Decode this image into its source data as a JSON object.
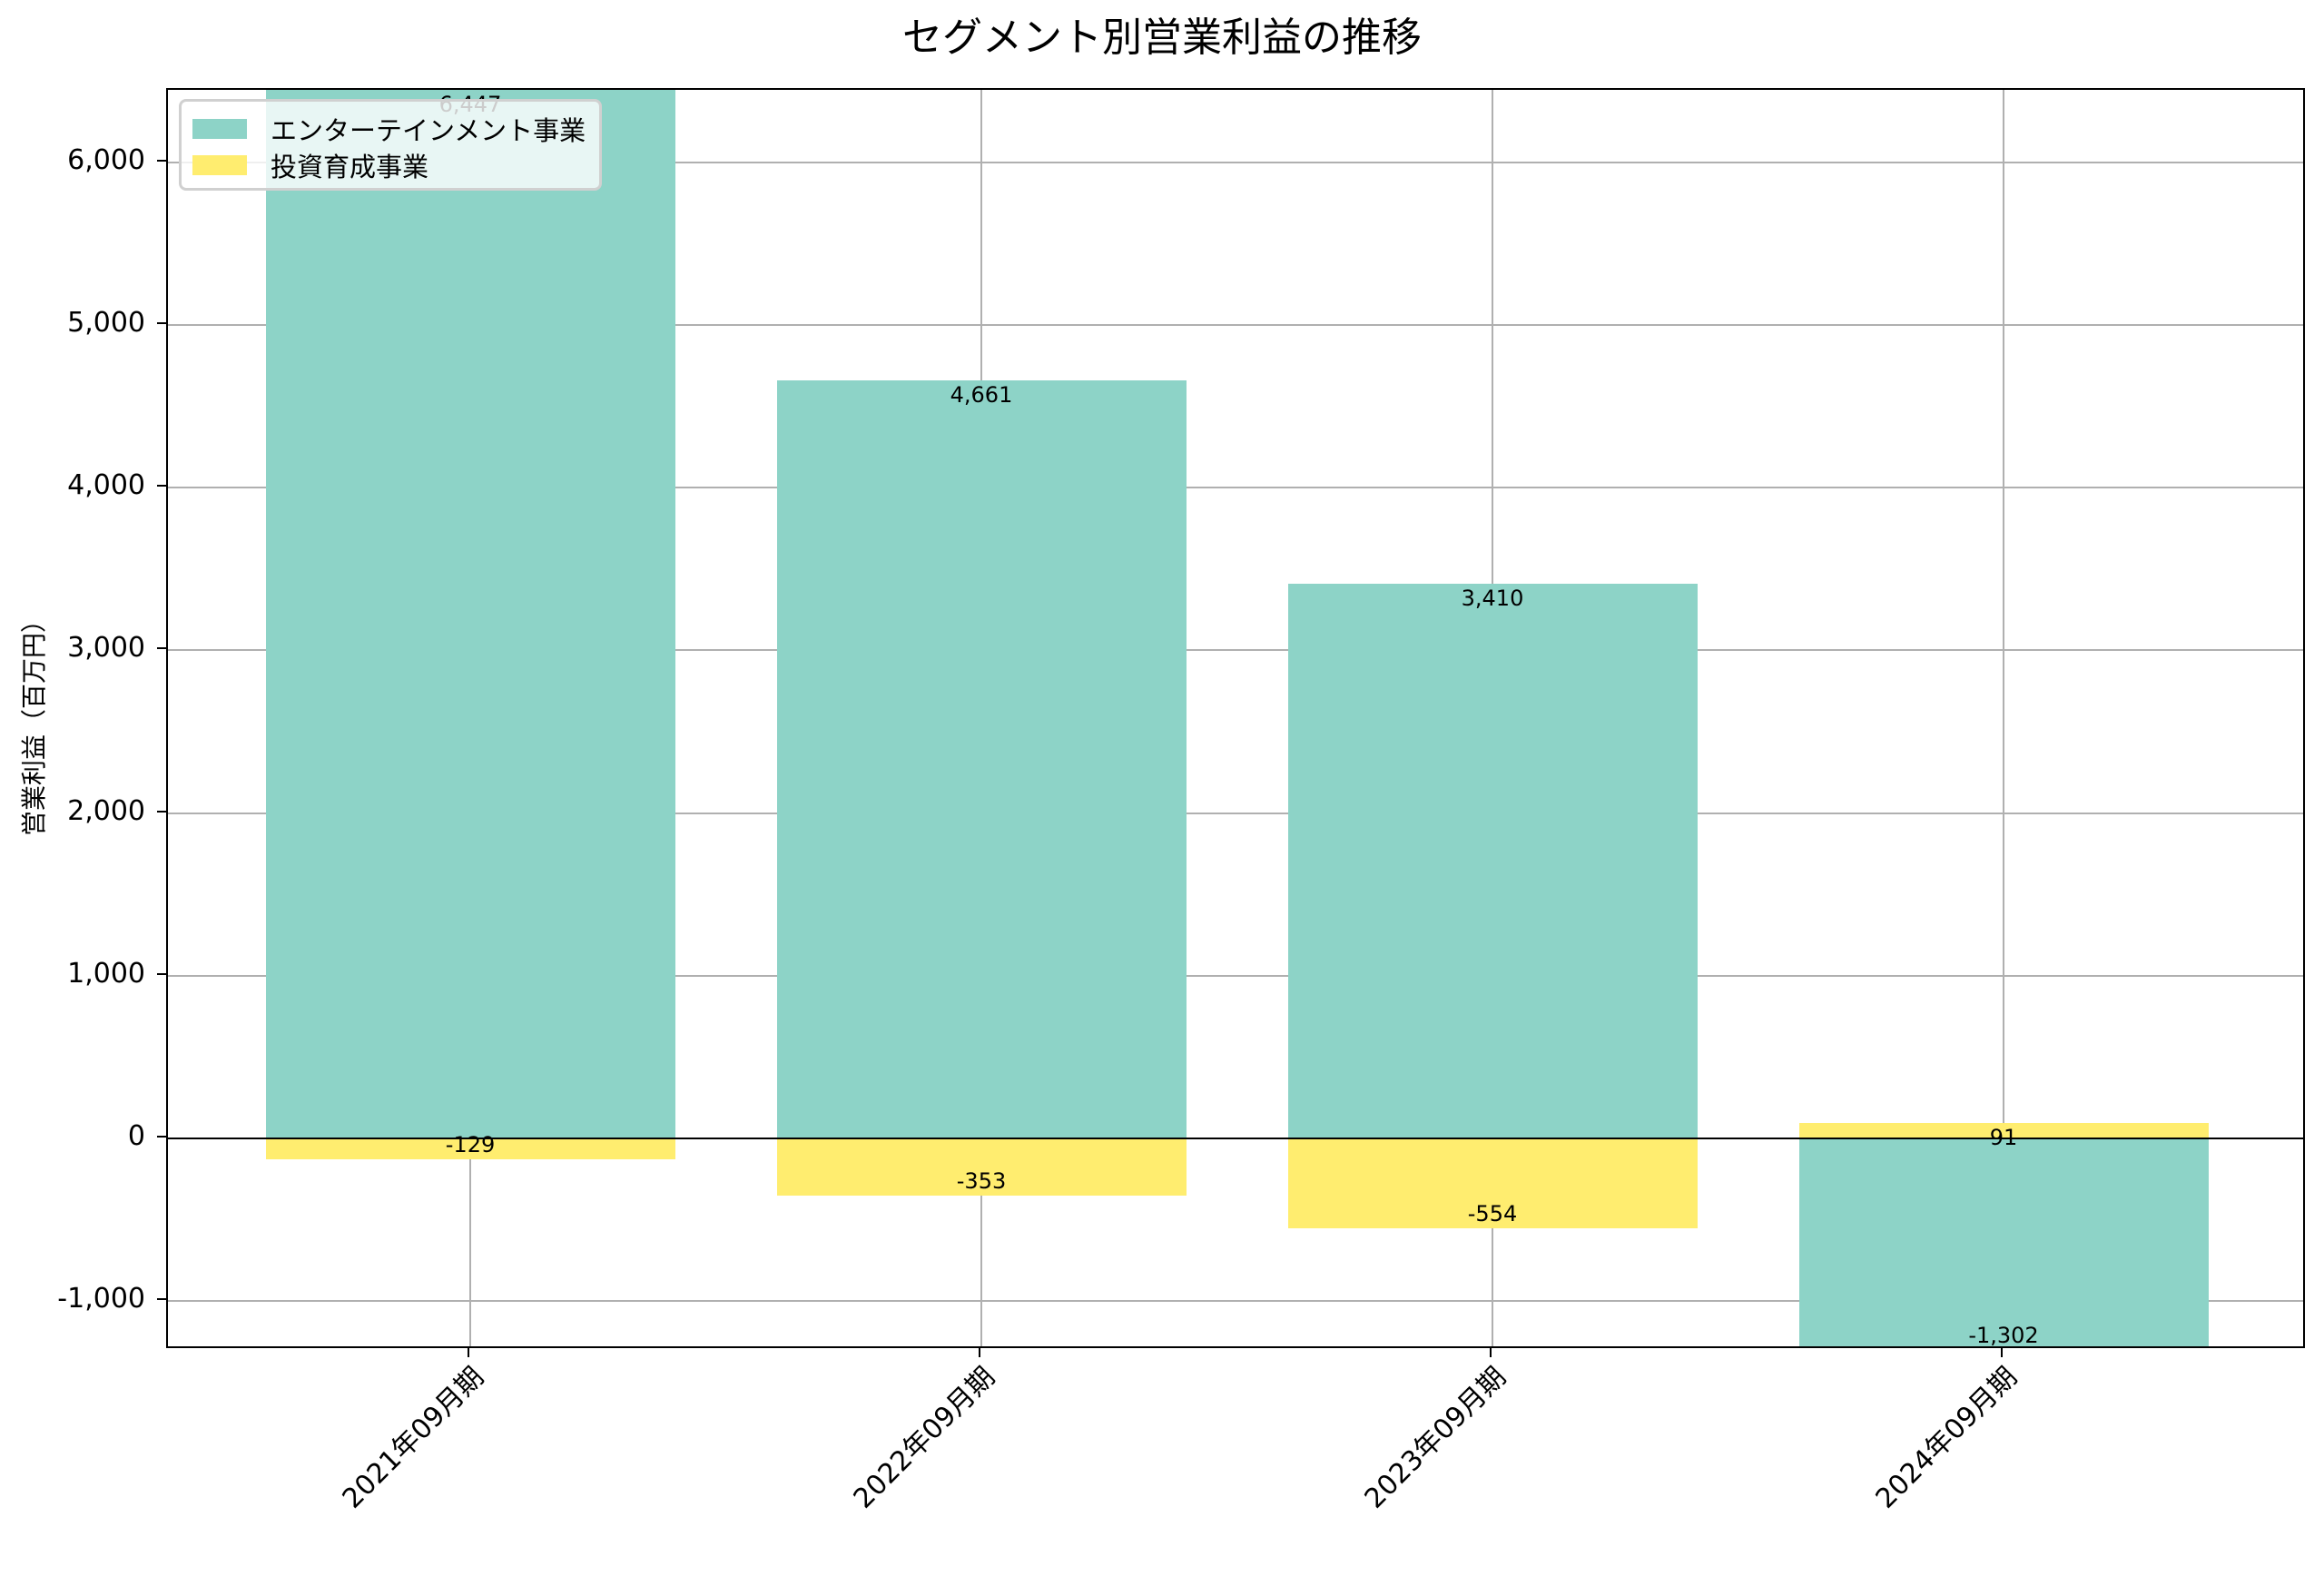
{
  "title": "セグメント別営業利益の推移",
  "y_axis_label": "営業利益（百万円）",
  "colors": {
    "entertainment": "#8dd3c7",
    "investment": "#ffed6f",
    "grid": "#b0b0b0",
    "axis": "#000000"
  },
  "legend": {
    "items": [
      {
        "label": "エンターテインメント事業",
        "color": "#8dd3c7"
      },
      {
        "label": "投資育成事業",
        "color": "#ffed6f"
      }
    ]
  },
  "y_ticks": [
    "-1,000",
    "0",
    "1,000",
    "2,000",
    "3,000",
    "4,000",
    "5,000",
    "6,000"
  ],
  "x_ticks": [
    "2021年09月期",
    "2022年09月期",
    "2023年09月期",
    "2024年09月期"
  ],
  "bar_labels": {
    "entertainment": [
      "6,447",
      "4,661",
      "3,410",
      "-1,302"
    ],
    "investment": [
      "-129",
      "-353",
      "-554",
      "91"
    ]
  },
  "chart_data": {
    "type": "bar",
    "title": "セグメント別営業利益の推移",
    "xlabel": "",
    "ylabel": "営業利益（百万円）",
    "categories": [
      "2021年09月期",
      "2022年09月期",
      "2023年09月期",
      "2024年09月期"
    ],
    "series": [
      {
        "name": "エンターテインメント事業",
        "color": "#8dd3c7",
        "values": [
          6447,
          4661,
          3410,
          -1302
        ]
      },
      {
        "name": "投資育成事業",
        "color": "#ffed6f",
        "values": [
          -129,
          -353,
          -554,
          91
        ]
      }
    ],
    "stacked": false,
    "overlapping_bars": true,
    "ylim": [
      -1302,
      6447
    ],
    "y_ticks": [
      -1000,
      0,
      1000,
      2000,
      3000,
      4000,
      5000,
      6000
    ],
    "grid": true,
    "legend_position": "upper left",
    "x_tick_rotation": 45
  }
}
